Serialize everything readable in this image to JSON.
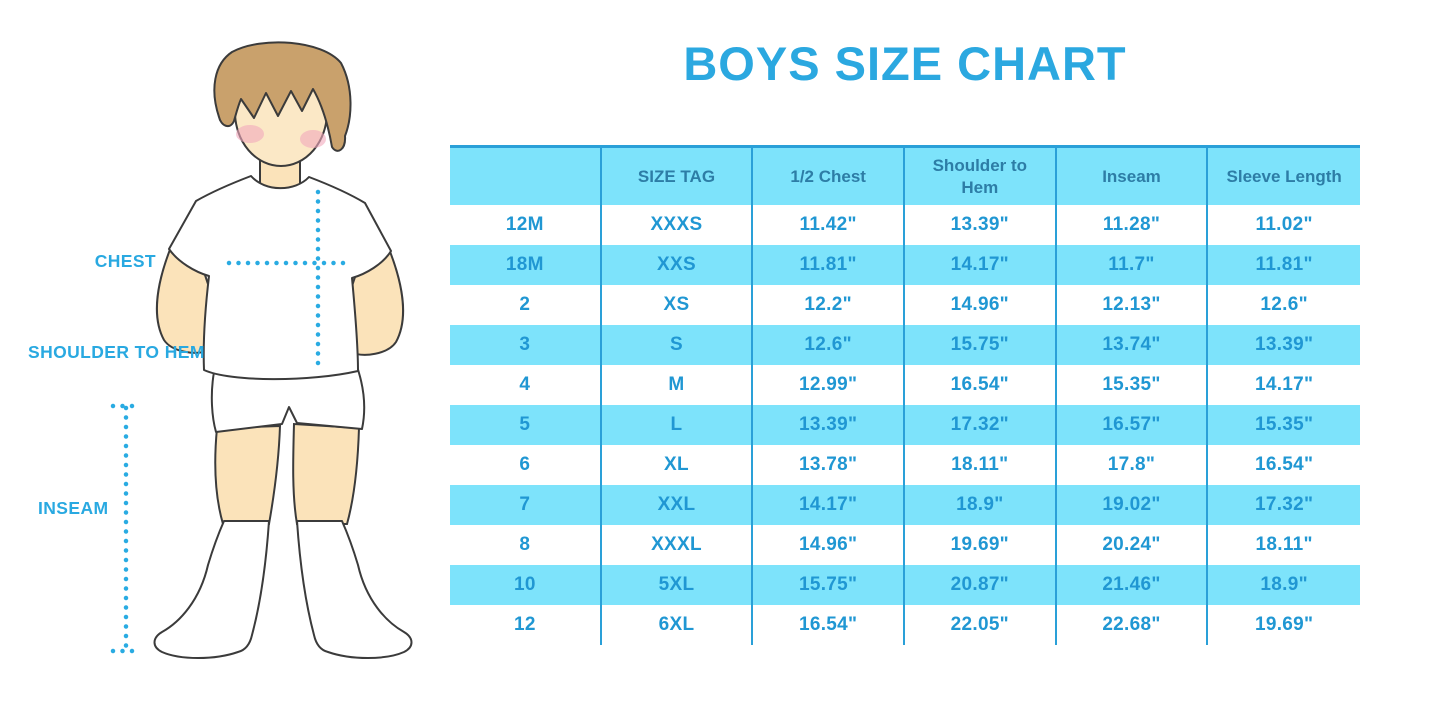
{
  "title": "BOYS SIZE CHART",
  "figure": {
    "chest_label": "CHEST",
    "shoulder_to_hem_label": "SHOULDER TO HEM",
    "inseam_label": "INSEAM"
  },
  "colors": {
    "accent_blue": "#29A9E1",
    "cyan_band": "#7DE3FB",
    "grid_line": "#2AA0D8",
    "header_text": "#2D7DA6",
    "cell_text": "#2097D3",
    "skin": "#FBE3BA",
    "hair": "#C9A16C",
    "blush": "#F2A8BD"
  },
  "chart_data": {
    "type": "table",
    "title": "BOYS SIZE CHART",
    "columns": [
      "",
      "SIZE TAG",
      "1/2 Chest",
      "Shoulder to Hem",
      "Inseam",
      "Sleeve Length"
    ],
    "rows": [
      [
        "12M",
        "XXXS",
        "11.42\"",
        "13.39\"",
        "11.28\"",
        "11.02\""
      ],
      [
        "18M",
        "XXS",
        "11.81\"",
        "14.17\"",
        "11.7\"",
        "11.81\""
      ],
      [
        "2",
        "XS",
        "12.2\"",
        "14.96\"",
        "12.13\"",
        "12.6\""
      ],
      [
        "3",
        "S",
        "12.6\"",
        "15.75\"",
        "13.74\"",
        "13.39\""
      ],
      [
        "4",
        "M",
        "12.99\"",
        "16.54\"",
        "15.35\"",
        "14.17\""
      ],
      [
        "5",
        "L",
        "13.39\"",
        "17.32\"",
        "16.57\"",
        "15.35\""
      ],
      [
        "6",
        "XL",
        "13.78\"",
        "18.11\"",
        "17.8\"",
        "16.54\""
      ],
      [
        "7",
        "XXL",
        "14.17\"",
        "18.9\"",
        "19.02\"",
        "17.32\""
      ],
      [
        "8",
        "XXXL",
        "14.96\"",
        "19.69\"",
        "20.24\"",
        "18.11\""
      ],
      [
        "10",
        "5XL",
        "15.75\"",
        "20.87\"",
        "21.46\"",
        "18.9\""
      ],
      [
        "12",
        "6XL",
        "16.54\"",
        "22.05\"",
        "22.68\"",
        "19.69\""
      ]
    ],
    "row_shading_alt_color": "#7DE3FB"
  }
}
